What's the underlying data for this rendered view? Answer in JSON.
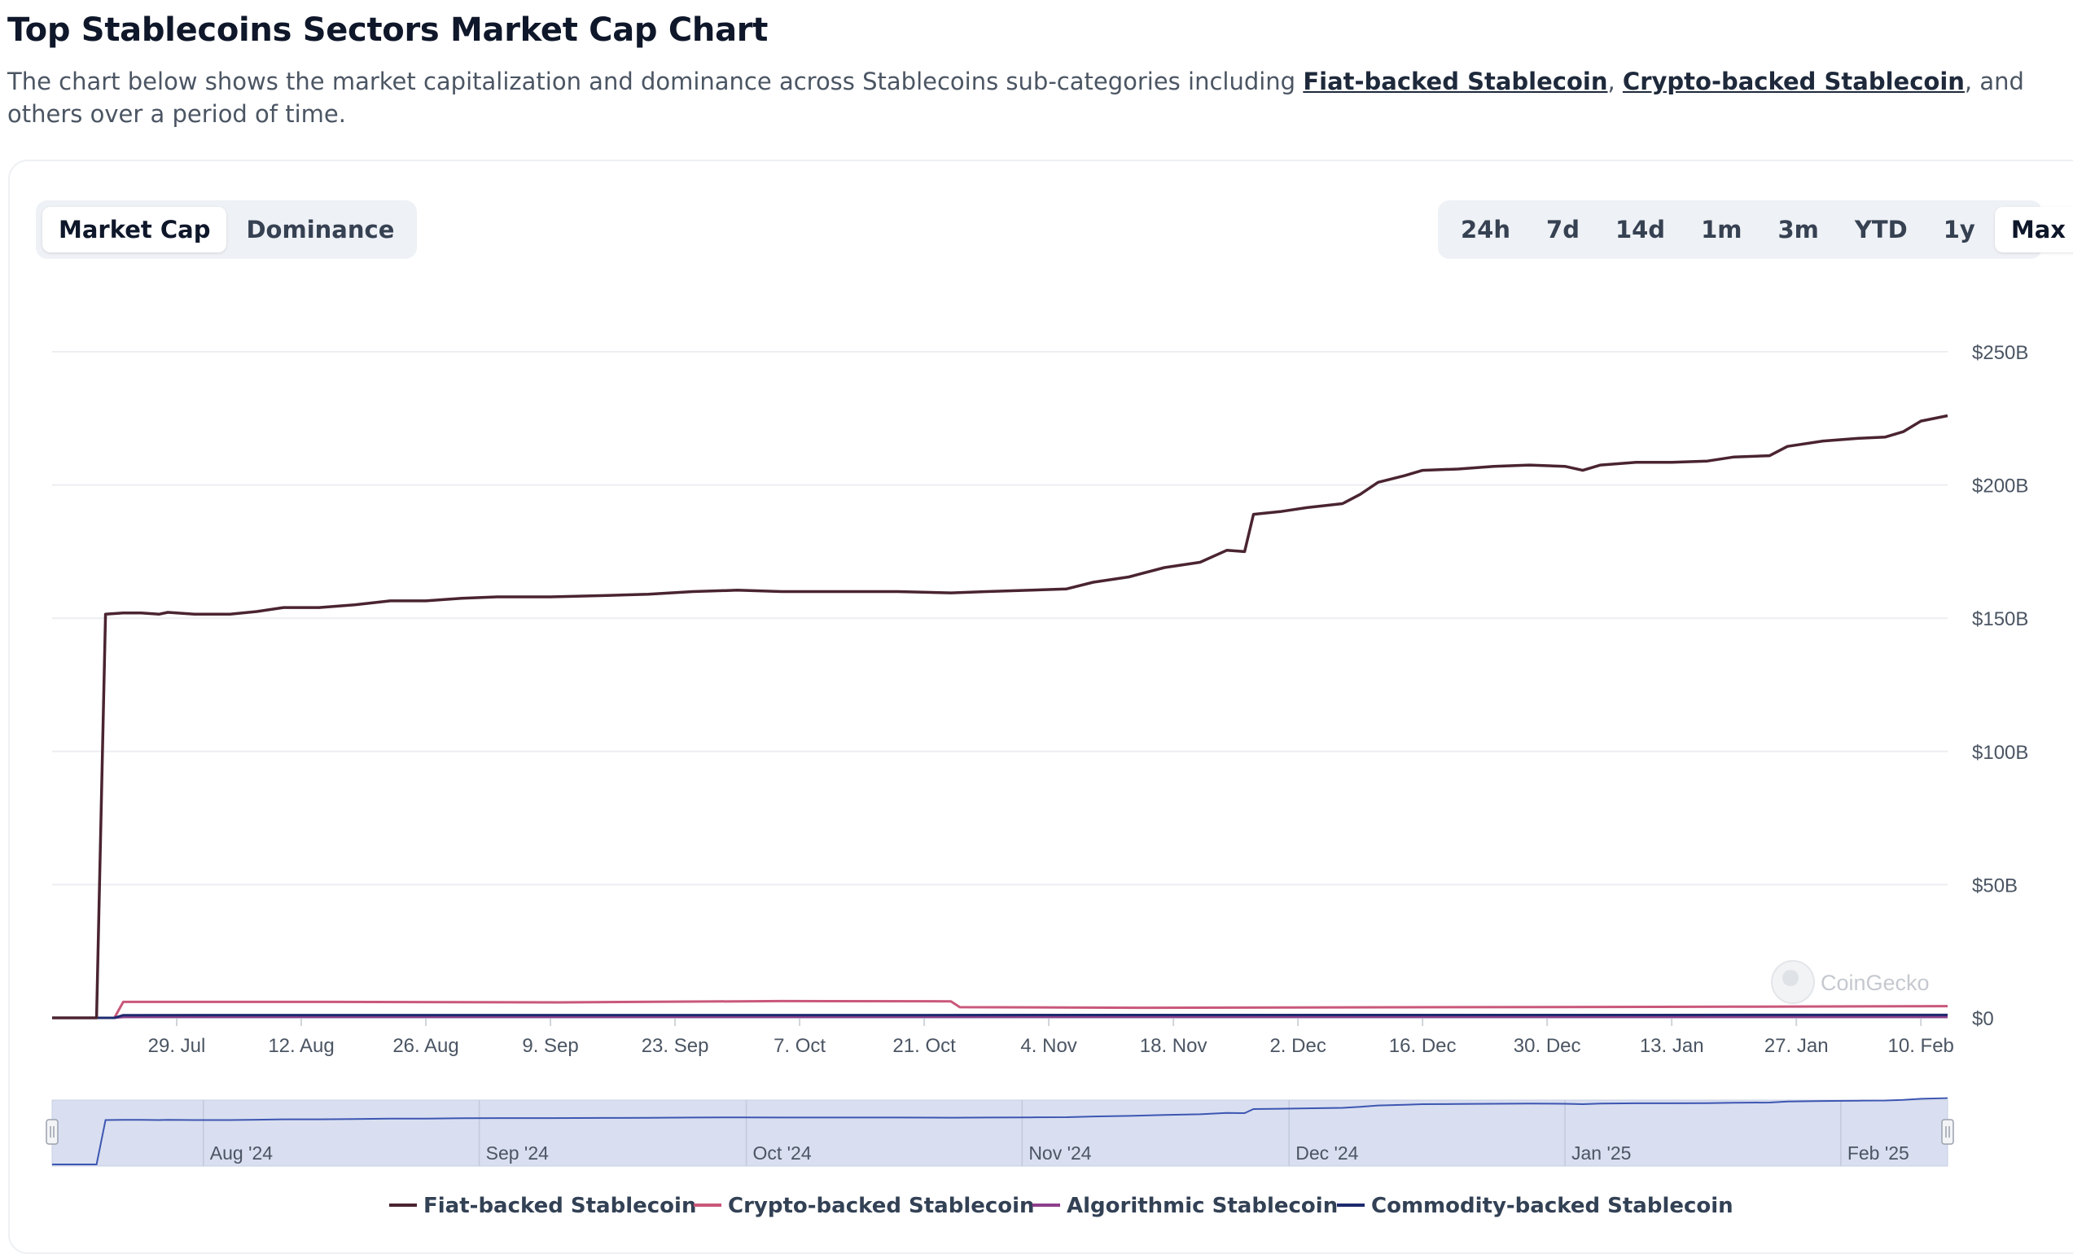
{
  "page": {
    "title": "Top Stablecoins Sectors Market Cap Chart",
    "description_pre": "The chart below shows the market capitalization and dominance across Stablecoins sub-categories including ",
    "link1": "Fiat-backed Stablecoin",
    "sep": ", ",
    "link2": "Crypto-backed Stablecoin",
    "description_post": ", and others over a period of time."
  },
  "toggle": {
    "items": [
      "Market Cap",
      "Dominance"
    ],
    "active": "Market Cap"
  },
  "ranges": {
    "items": [
      "24h",
      "7d",
      "14d",
      "1m",
      "3m",
      "YTD",
      "1y",
      "Max"
    ],
    "active": "Max"
  },
  "watermark": "CoinGecko",
  "colors": {
    "fiat": "#4a2430",
    "crypto": "#c9587a",
    "algo": "#8e3f8c",
    "commodity": "#1e2a6e",
    "navigator_fill": "#d9dff0",
    "navigator_line": "#3d56b2"
  },
  "chart_data": {
    "type": "line",
    "y_unit": "USD (billions)",
    "ylim": [
      0,
      250
    ],
    "y_ticks": [
      0,
      50,
      100,
      150,
      200,
      250
    ],
    "y_tick_labels": [
      "$0",
      "$50B",
      "$100B",
      "$150B",
      "$200B",
      "$250B"
    ],
    "x_range": [
      "2024-07-15",
      "2025-02-13"
    ],
    "x_ticks": [
      "2024-07-29",
      "2024-08-12",
      "2024-08-26",
      "2024-09-09",
      "2024-09-23",
      "2024-10-07",
      "2024-10-21",
      "2024-11-04",
      "2024-11-18",
      "2024-12-02",
      "2024-12-16",
      "2024-12-30",
      "2025-01-13",
      "2025-01-27",
      "2025-02-10"
    ],
    "x_tick_labels": [
      "29. Jul",
      "12. Aug",
      "26. Aug",
      "9. Sep",
      "23. Sep",
      "7. Oct",
      "21. Oct",
      "4. Nov",
      "18. Nov",
      "2. Dec",
      "16. Dec",
      "30. Dec",
      "13. Jan",
      "27. Jan",
      "10. Feb"
    ],
    "grid": true,
    "legend_position": "bottom",
    "navigator_labels": [
      "Aug '24",
      "Sep '24",
      "Oct '24",
      "Nov '24",
      "Dec '24",
      "Jan '25",
      "Feb '25"
    ],
    "navigator_ticks": [
      "2024-08-01",
      "2024-09-01",
      "2024-10-01",
      "2024-11-01",
      "2024-12-01",
      "2025-01-01",
      "2025-02-01"
    ],
    "series": [
      {
        "name": "Fiat-backed Stablecoin",
        "points": [
          [
            "2024-07-15",
            0
          ],
          [
            "2024-07-20",
            0
          ],
          [
            "2024-07-21",
            151.5
          ],
          [
            "2024-07-23",
            152
          ],
          [
            "2024-07-25",
            152
          ],
          [
            "2024-07-27",
            151.5
          ],
          [
            "2024-07-28",
            152.2
          ],
          [
            "2024-07-31",
            151.5
          ],
          [
            "2024-08-04",
            151.5
          ],
          [
            "2024-08-07",
            152.5
          ],
          [
            "2024-08-10",
            154
          ],
          [
            "2024-08-14",
            154
          ],
          [
            "2024-08-18",
            155
          ],
          [
            "2024-08-22",
            156.5
          ],
          [
            "2024-08-26",
            156.5
          ],
          [
            "2024-08-30",
            157.5
          ],
          [
            "2024-09-03",
            158
          ],
          [
            "2024-09-09",
            158
          ],
          [
            "2024-09-15",
            158.5
          ],
          [
            "2024-09-20",
            159
          ],
          [
            "2024-09-25",
            160
          ],
          [
            "2024-09-30",
            160.5
          ],
          [
            "2024-10-05",
            160
          ],
          [
            "2024-10-12",
            160
          ],
          [
            "2024-10-18",
            160
          ],
          [
            "2024-10-24",
            159.5
          ],
          [
            "2024-10-28",
            160
          ],
          [
            "2024-11-02",
            160.5
          ],
          [
            "2024-11-06",
            161
          ],
          [
            "2024-11-09",
            163.5
          ],
          [
            "2024-11-13",
            165.5
          ],
          [
            "2024-11-17",
            169
          ],
          [
            "2024-11-21",
            171
          ],
          [
            "2024-11-24",
            175.5
          ],
          [
            "2024-11-26",
            175
          ],
          [
            "2024-11-27",
            189
          ],
          [
            "2024-11-30",
            190
          ],
          [
            "2024-12-03",
            191.5
          ],
          [
            "2024-12-07",
            193
          ],
          [
            "2024-12-09",
            196.5
          ],
          [
            "2024-12-11",
            201
          ],
          [
            "2024-12-14",
            203.5
          ],
          [
            "2024-12-16",
            205.5
          ],
          [
            "2024-12-20",
            206
          ],
          [
            "2024-12-24",
            207
          ],
          [
            "2024-12-28",
            207.5
          ],
          [
            "2025-01-01",
            207
          ],
          [
            "2025-01-03",
            205.5
          ],
          [
            "2025-01-05",
            207.5
          ],
          [
            "2025-01-09",
            208.5
          ],
          [
            "2025-01-13",
            208.5
          ],
          [
            "2025-01-17",
            209
          ],
          [
            "2025-01-20",
            210.5
          ],
          [
            "2025-01-24",
            211
          ],
          [
            "2025-01-26",
            214.5
          ],
          [
            "2025-01-30",
            216.5
          ],
          [
            "2025-02-03",
            217.5
          ],
          [
            "2025-02-06",
            218
          ],
          [
            "2025-02-08",
            220
          ],
          [
            "2025-02-10",
            224
          ],
          [
            "2025-02-13",
            226
          ]
        ]
      },
      {
        "name": "Crypto-backed Stablecoin",
        "points": [
          [
            "2024-07-15",
            0
          ],
          [
            "2024-07-22",
            0
          ],
          [
            "2024-07-23",
            6
          ],
          [
            "2024-08-15",
            6
          ],
          [
            "2024-09-10",
            5.8
          ],
          [
            "2024-10-05",
            6.3
          ],
          [
            "2024-10-24",
            6.2
          ],
          [
            "2024-10-25",
            4
          ],
          [
            "2024-11-15",
            3.8
          ],
          [
            "2024-12-20",
            4
          ],
          [
            "2025-01-20",
            4.2
          ],
          [
            "2025-02-13",
            4.4
          ]
        ]
      },
      {
        "name": "Algorithmic Stablecoin",
        "points": [
          [
            "2024-07-15",
            0
          ],
          [
            "2024-07-22",
            0
          ],
          [
            "2024-07-23",
            0.4
          ],
          [
            "2025-02-13",
            0.4
          ]
        ]
      },
      {
        "name": "Commodity-backed Stablecoin",
        "points": [
          [
            "2024-07-15",
            0
          ],
          [
            "2024-07-22",
            0
          ],
          [
            "2024-07-23",
            1
          ],
          [
            "2025-02-13",
            1.1
          ]
        ]
      }
    ]
  }
}
